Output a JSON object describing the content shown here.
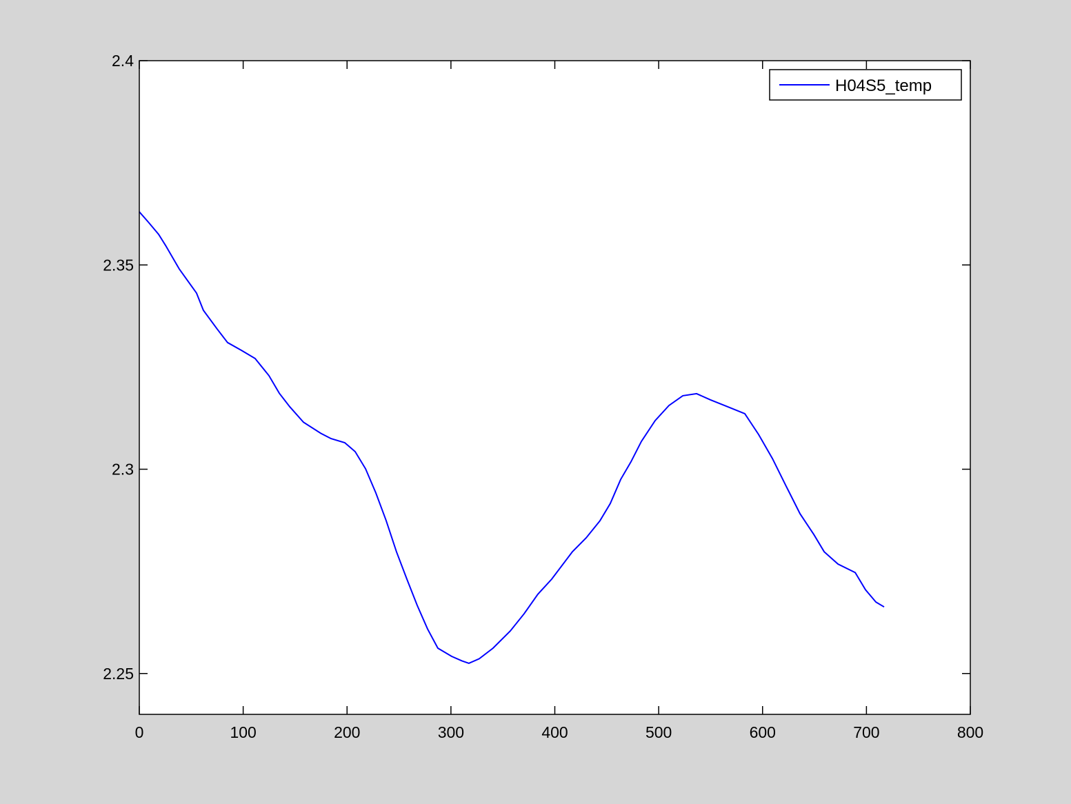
{
  "chart_data": {
    "type": "line",
    "title": "",
    "xlabel": "",
    "ylabel": "",
    "xlim": [
      0,
      800
    ],
    "ylim": [
      2.24,
      2.4
    ],
    "xticks": [
      "0",
      "100",
      "200",
      "300",
      "400",
      "500",
      "600",
      "700",
      "800"
    ],
    "xtick_values": [
      0,
      100,
      200,
      300,
      400,
      500,
      600,
      700,
      800
    ],
    "yticks": [
      "2.25",
      "2.3",
      "2.35",
      "2.4"
    ],
    "ytick_values": [
      2.25,
      2.3,
      2.35,
      2.4
    ],
    "grid": false,
    "legend_position": "top-right",
    "background_color": "#d6d6d6",
    "series": [
      {
        "name": "H04S5_temp",
        "color": "#0000ff",
        "x": [
          0,
          8.6,
          18.6,
          25.2,
          38.5,
          55.1,
          61.7,
          75,
          85,
          98.3,
          111.5,
          124.8,
          134.8,
          144.8,
          158.1,
          174.7,
          184.6,
          197.8,
          207.8,
          217.8,
          227.7,
          237.7,
          247.6,
          257.6,
          267.5,
          277.5,
          287.4,
          300.7,
          310.6,
          317.3,
          327.2,
          340.5,
          357.1,
          370.4,
          383.7,
          397,
          416.9,
          430.2,
          443.5,
          453.4,
          463.4,
          473.3,
          483.3,
          496.6,
          509.9,
          523.2,
          536.5,
          549.7,
          566.3,
          582.9,
          596.2,
          609.5,
          622.8,
          636.1,
          649.4,
          659.3,
          672.6,
          689.2,
          699.1,
          709.1,
          717
        ],
        "y": [
          2.363,
          2.3605,
          2.3575,
          2.3548,
          2.349,
          2.3431,
          2.3389,
          2.3343,
          2.331,
          2.3291,
          2.3271,
          2.3229,
          2.3186,
          2.3153,
          2.3115,
          2.3088,
          2.3075,
          2.3065,
          2.3043,
          2.3001,
          2.2942,
          2.2874,
          2.2798,
          2.2731,
          2.2667,
          2.2609,
          2.2562,
          2.2542,
          2.2531,
          2.2525,
          2.2536,
          2.2562,
          2.2604,
          2.2646,
          2.2694,
          2.2731,
          2.2798,
          2.2832,
          2.2874,
          2.2916,
          2.2975,
          2.3018,
          2.3068,
          2.3119,
          2.3156,
          2.318,
          2.3185,
          2.317,
          2.3153,
          2.3136,
          2.3085,
          2.3026,
          2.2958,
          2.2891,
          2.284,
          2.2798,
          2.2768,
          2.2747,
          2.2705,
          2.2675,
          2.2663
        ]
      }
    ]
  }
}
